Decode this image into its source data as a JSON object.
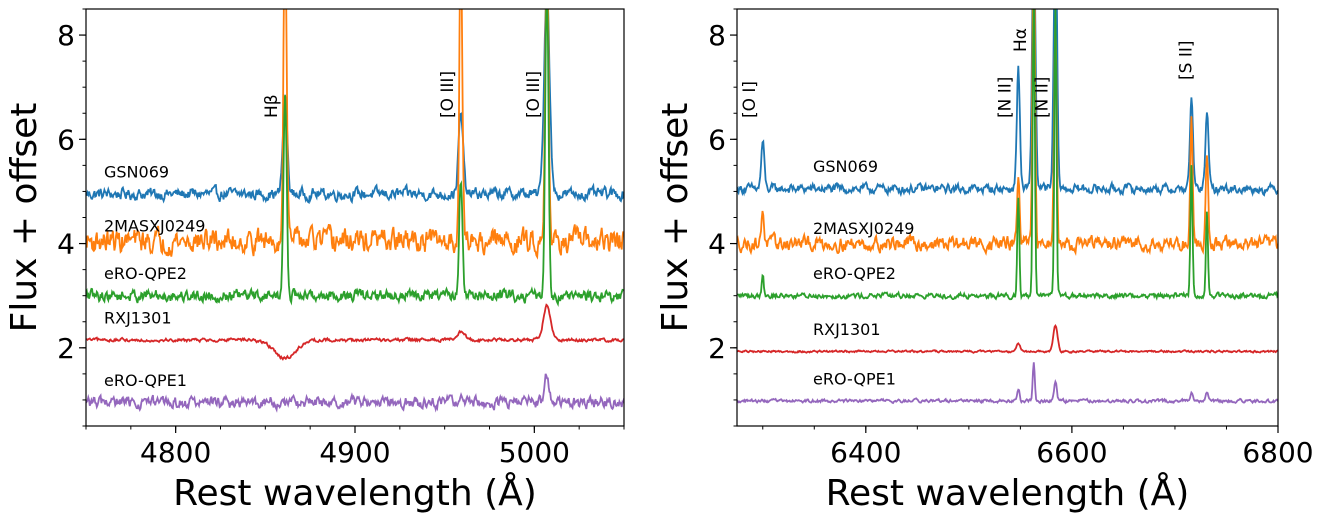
{
  "chart_data": [
    {
      "type": "line",
      "xlabel": "Rest wavelength (Å)",
      "ylabel": "Flux + offset",
      "xlim": [
        4750,
        5050
      ],
      "ylim": [
        0.5,
        8.5
      ],
      "xticks": [
        4800,
        4900,
        5000
      ],
      "yticks": [
        2,
        4,
        6,
        8
      ],
      "emission_lines": [
        {
          "label": "Hβ",
          "wavelength": 4861
        },
        {
          "label": "[O III]",
          "wavelength": 4959
        },
        {
          "label": "[O III]",
          "wavelength": 5007
        }
      ],
      "series": [
        {
          "label": "GSN069",
          "color": "#1f77b4",
          "baseline": 4.95,
          "noise": 0.09,
          "lines": [
            {
              "w": 4861,
              "amp": 1.9,
              "sig": 1.2
            },
            {
              "w": 4959,
              "amp": 1.5,
              "sig": 1.3
            },
            {
              "w": 5007,
              "amp": 4.0,
              "sig": 1.5
            }
          ]
        },
        {
          "label": "2MASXJ0249",
          "color": "#ff7f0e",
          "baseline": 4.05,
          "noise": 0.18,
          "lines": [
            {
              "w": 4861,
              "amp": 6.0,
              "sig": 0.9
            },
            {
              "w": 4959,
              "amp": 6.0,
              "sig": 0.8
            },
            {
              "w": 5007,
              "amp": 6.0,
              "sig": 0.9
            }
          ]
        },
        {
          "label": "eRO-QPE2",
          "color": "#2ca02c",
          "baseline": 3.0,
          "noise": 0.09,
          "lines": [
            {
              "w": 4861,
              "amp": 3.8,
              "sig": 0.9
            },
            {
              "w": 4959,
              "amp": 2.3,
              "sig": 0.9
            },
            {
              "w": 5007,
              "amp": 6.0,
              "sig": 0.9
            }
          ]
        },
        {
          "label": "RXJ1301",
          "color": "#d62728",
          "baseline": 2.15,
          "noise": 0.025,
          "lines": [
            {
              "w": 4861,
              "amp": -0.35,
              "sig": 6.0
            },
            {
              "w": 4959,
              "amp": 0.15,
              "sig": 2.5
            },
            {
              "w": 5007,
              "amp": 0.65,
              "sig": 2.0
            }
          ]
        },
        {
          "label": "eRO-QPE1",
          "color": "#9467bd",
          "baseline": 0.95,
          "noise": 0.09,
          "lines": [
            {
              "w": 4959,
              "amp": 0.2,
              "sig": 1.2
            },
            {
              "w": 5007,
              "amp": 0.55,
              "sig": 1.2
            }
          ]
        }
      ]
    },
    {
      "type": "line",
      "xlabel": "Rest wavelength (Å)",
      "ylabel": "Flux + offset",
      "xlim": [
        6275,
        6800
      ],
      "ylim": [
        0.5,
        8.5
      ],
      "xticks": [
        6400,
        6600,
        6800
      ],
      "yticks": [
        2,
        4,
        6,
        8
      ],
      "emission_lines": [
        {
          "label": "[O I]",
          "wavelength": 6300
        },
        {
          "label": "[N II]",
          "wavelength": 6548
        },
        {
          "label": "Hα",
          "wavelength": 6563
        },
        {
          "label": "[N II]",
          "wavelength": 6584
        },
        {
          "label": "[S II]",
          "wavelength": 6724
        }
      ],
      "series": [
        {
          "label": "GSN069",
          "color": "#1f77b4",
          "baseline": 5.05,
          "noise": 0.07,
          "lines": [
            {
              "w": 6300,
              "amp": 0.9,
              "sig": 1.5
            },
            {
              "w": 6548,
              "amp": 2.3,
              "sig": 1.5
            },
            {
              "w": 6563,
              "amp": 5.0,
              "sig": 1.6
            },
            {
              "w": 6584,
              "amp": 5.0,
              "sig": 1.6
            },
            {
              "w": 6716,
              "amp": 1.7,
              "sig": 1.5
            },
            {
              "w": 6731,
              "amp": 1.5,
              "sig": 1.5
            }
          ]
        },
        {
          "label": "2MASXJ0249",
          "color": "#ff7f0e",
          "baseline": 4.0,
          "noise": 0.11,
          "lines": [
            {
              "w": 6300,
              "amp": 0.7,
              "sig": 1.2
            },
            {
              "w": 6548,
              "amp": 1.3,
              "sig": 1.2
            },
            {
              "w": 6563,
              "amp": 6.0,
              "sig": 1.2
            },
            {
              "w": 6584,
              "amp": 4.3,
              "sig": 1.3
            },
            {
              "w": 6716,
              "amp": 2.4,
              "sig": 1.2
            },
            {
              "w": 6731,
              "amp": 1.8,
              "sig": 1.2
            }
          ]
        },
        {
          "label": "eRO-QPE2",
          "color": "#2ca02c",
          "baseline": 3.0,
          "noise": 0.04,
          "lines": [
            {
              "w": 6300,
              "amp": 0.45,
              "sig": 1.0
            },
            {
              "w": 6548,
              "amp": 1.9,
              "sig": 1.0
            },
            {
              "w": 6563,
              "amp": 6.0,
              "sig": 1.0
            },
            {
              "w": 6584,
              "amp": 5.5,
              "sig": 1.0
            },
            {
              "w": 6716,
              "amp": 2.5,
              "sig": 1.0
            },
            {
              "w": 6731,
              "amp": 1.6,
              "sig": 1.0
            }
          ]
        },
        {
          "label": "RXJ1301",
          "color": "#d62728",
          "baseline": 1.93,
          "noise": 0.015,
          "lines": [
            {
              "w": 6548,
              "amp": 0.15,
              "sig": 2.0
            },
            {
              "w": 6584,
              "amp": 0.5,
              "sig": 2.0
            }
          ]
        },
        {
          "label": "eRO-QPE1",
          "color": "#9467bd",
          "baseline": 0.98,
          "noise": 0.025,
          "lines": [
            {
              "w": 6548,
              "amp": 0.25,
              "sig": 1.2
            },
            {
              "w": 6563,
              "amp": 0.75,
              "sig": 1.0
            },
            {
              "w": 6584,
              "amp": 0.4,
              "sig": 1.2
            },
            {
              "w": 6716,
              "amp": 0.15,
              "sig": 1.2
            },
            {
              "w": 6731,
              "amp": 0.15,
              "sig": 1.2
            }
          ]
        }
      ]
    }
  ]
}
